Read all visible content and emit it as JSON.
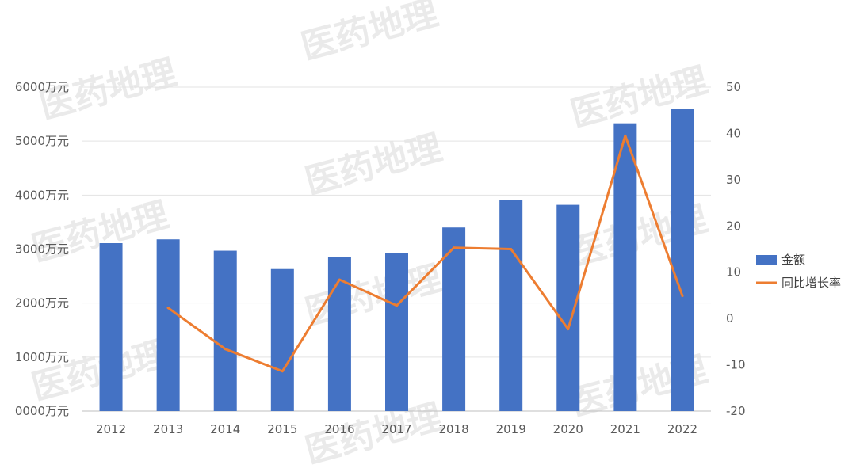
{
  "chart_data": {
    "type": "bar",
    "categories": [
      "2012",
      "2013",
      "2014",
      "2015",
      "2016",
      "2017",
      "2018",
      "2019",
      "2020",
      "2021",
      "2022"
    ],
    "series": [
      {
        "name": "金额",
        "type": "bar",
        "axis": "left",
        "color": "#4472C4",
        "values": [
          3110,
          3180,
          2970,
          2630,
          2850,
          2930,
          3400,
          3910,
          3820,
          5330,
          5590
        ]
      },
      {
        "name": "同比增长率",
        "type": "line",
        "axis": "right",
        "color": "#ED7D31",
        "values": [
          null,
          2.3,
          -6.6,
          -11.4,
          8.4,
          2.8,
          15.3,
          15.0,
          -2.3,
          39.5,
          4.9
        ]
      }
    ],
    "y_left": {
      "ylim": [
        0,
        6000
      ],
      "tick_labels": [
        "0000万元",
        "1000万元",
        "2000万元",
        "3000万元",
        "4000万元",
        "5000万元",
        "6000万元"
      ]
    },
    "y_right": {
      "ylim": [
        -20,
        50
      ],
      "tick_labels": [
        "-20",
        "-10",
        "0",
        "10",
        "20",
        "30",
        "40",
        "50"
      ]
    },
    "grid": true,
    "legend": "right",
    "watermark": "医药地理"
  }
}
